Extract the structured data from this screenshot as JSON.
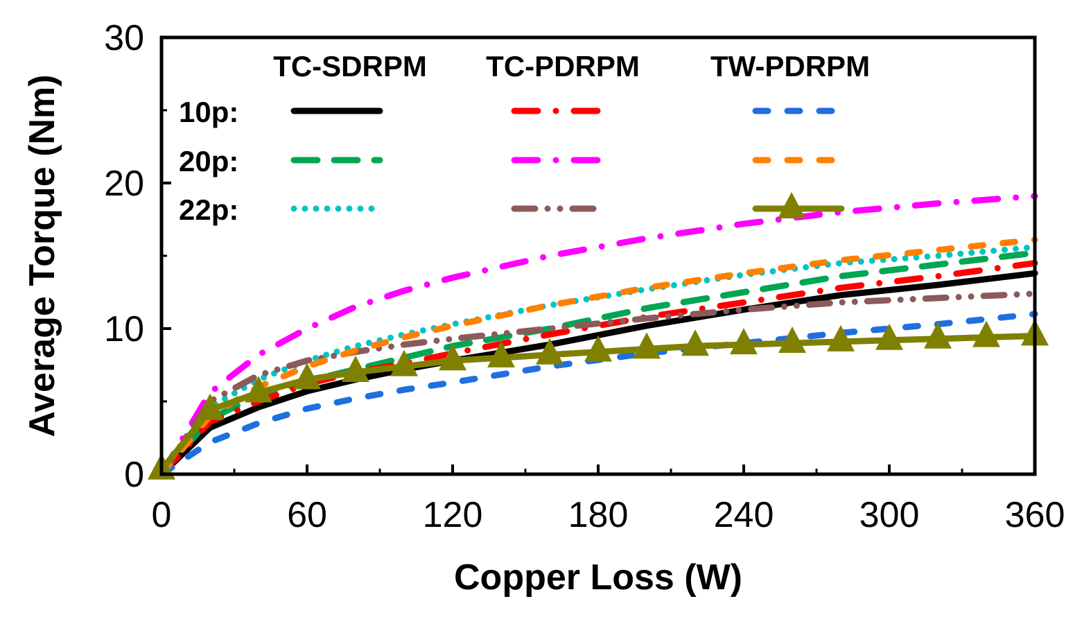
{
  "chart_data": {
    "type": "line",
    "title": "",
    "xlabel": "Copper Loss (W)",
    "ylabel": "Average Torque (Nm)",
    "xlim": [
      0,
      360
    ],
    "ylim": [
      0,
      30
    ],
    "xticks": [
      "0",
      "60",
      "120",
      "180",
      "240",
      "300",
      "360"
    ],
    "yticks": [
      "0",
      "10",
      "20",
      "30"
    ],
    "grid": false,
    "legend": {
      "placement": "top-left",
      "column_headers": [
        "TC-SDRPM",
        "TC-PDRPM",
        "TW-PDRPM"
      ],
      "row_labels": [
        "10p:",
        "20p:",
        "22p:"
      ]
    },
    "series": [
      {
        "legend_row": 0,
        "legend_col": 0,
        "color": "#000000",
        "style": "solid",
        "x": [
          0,
          20,
          40,
          60,
          80,
          100,
          120,
          160,
          200,
          240,
          280,
          320,
          360
        ],
        "y": [
          0,
          3.2,
          4.6,
          5.7,
          6.5,
          7.2,
          7.8,
          8.9,
          10.2,
          11.3,
          12.3,
          13.0,
          13.8
        ]
      },
      {
        "legend_row": 1,
        "legend_col": 0,
        "color": "#00a651",
        "style": "dash",
        "x": [
          0,
          20,
          40,
          60,
          80,
          100,
          120,
          160,
          200,
          240,
          280,
          320,
          360
        ],
        "y": [
          0,
          3.8,
          5.4,
          6.4,
          7.2,
          8.0,
          8.8,
          10.0,
          11.4,
          12.5,
          13.6,
          14.4,
          15.2
        ]
      },
      {
        "legend_row": 2,
        "legend_col": 0,
        "color": "#00c5c5",
        "style": "dot",
        "x": [
          0,
          20,
          40,
          60,
          80,
          100,
          120,
          160,
          200,
          240,
          280,
          320,
          360
        ],
        "y": [
          0,
          4.6,
          6.5,
          7.8,
          8.8,
          9.6,
          10.3,
          11.6,
          12.7,
          13.7,
          14.5,
          15.0,
          15.6
        ]
      },
      {
        "legend_row": 0,
        "legend_col": 1,
        "color": "#ff0000",
        "style": "dashdot",
        "x": [
          0,
          20,
          40,
          60,
          80,
          100,
          120,
          160,
          200,
          240,
          280,
          320,
          360
        ],
        "y": [
          0,
          3.6,
          5.0,
          6.2,
          7.0,
          7.6,
          8.3,
          9.6,
          10.8,
          11.8,
          12.8,
          13.6,
          14.5
        ]
      },
      {
        "legend_row": 1,
        "legend_col": 1,
        "color": "#ff00ff",
        "style": "dashdot",
        "x": [
          0,
          20,
          40,
          60,
          80,
          100,
          120,
          160,
          200,
          240,
          280,
          320,
          360
        ],
        "y": [
          0,
          5.6,
          8.2,
          10.0,
          11.5,
          12.6,
          13.5,
          15.0,
          16.2,
          17.2,
          18.0,
          18.6,
          19.1
        ]
      },
      {
        "legend_row": 2,
        "legend_col": 1,
        "color": "#8b5a5a",
        "style": "dashdotdot",
        "x": [
          0,
          20,
          40,
          60,
          80,
          100,
          120,
          160,
          200,
          240,
          280,
          320,
          360
        ],
        "y": [
          0,
          5.0,
          6.8,
          7.8,
          8.4,
          8.9,
          9.3,
          10.0,
          10.7,
          11.3,
          11.8,
          12.1,
          12.4
        ]
      },
      {
        "legend_row": 0,
        "legend_col": 2,
        "color": "#1f6fe0",
        "style": "shortdash",
        "x": [
          0,
          20,
          40,
          60,
          80,
          100,
          120,
          160,
          200,
          240,
          280,
          320,
          360
        ],
        "y": [
          0,
          2.2,
          3.5,
          4.5,
          5.2,
          5.8,
          6.3,
          7.4,
          8.3,
          9.0,
          9.7,
          10.3,
          11.0
        ]
      },
      {
        "legend_row": 1,
        "legend_col": 2,
        "color": "#ff8000",
        "style": "shortdash",
        "x": [
          0,
          20,
          40,
          60,
          80,
          100,
          120,
          160,
          200,
          240,
          280,
          320,
          360
        ],
        "y": [
          0,
          4.0,
          6.0,
          7.4,
          8.5,
          9.4,
          10.2,
          11.6,
          12.8,
          13.8,
          14.7,
          15.4,
          16.1
        ]
      },
      {
        "legend_row": 2,
        "legend_col": 2,
        "color": "#808000",
        "style": "solid",
        "marker": "triangle",
        "x": [
          0,
          20,
          40,
          60,
          80,
          100,
          120,
          140,
          160,
          180,
          200,
          220,
          240,
          260,
          280,
          300,
          320,
          340,
          360
        ],
        "y": [
          0.3,
          4.4,
          5.6,
          6.5,
          7.0,
          7.4,
          7.8,
          8.0,
          8.2,
          8.4,
          8.6,
          8.8,
          8.9,
          9.0,
          9.1,
          9.2,
          9.3,
          9.4,
          9.5
        ]
      }
    ]
  }
}
